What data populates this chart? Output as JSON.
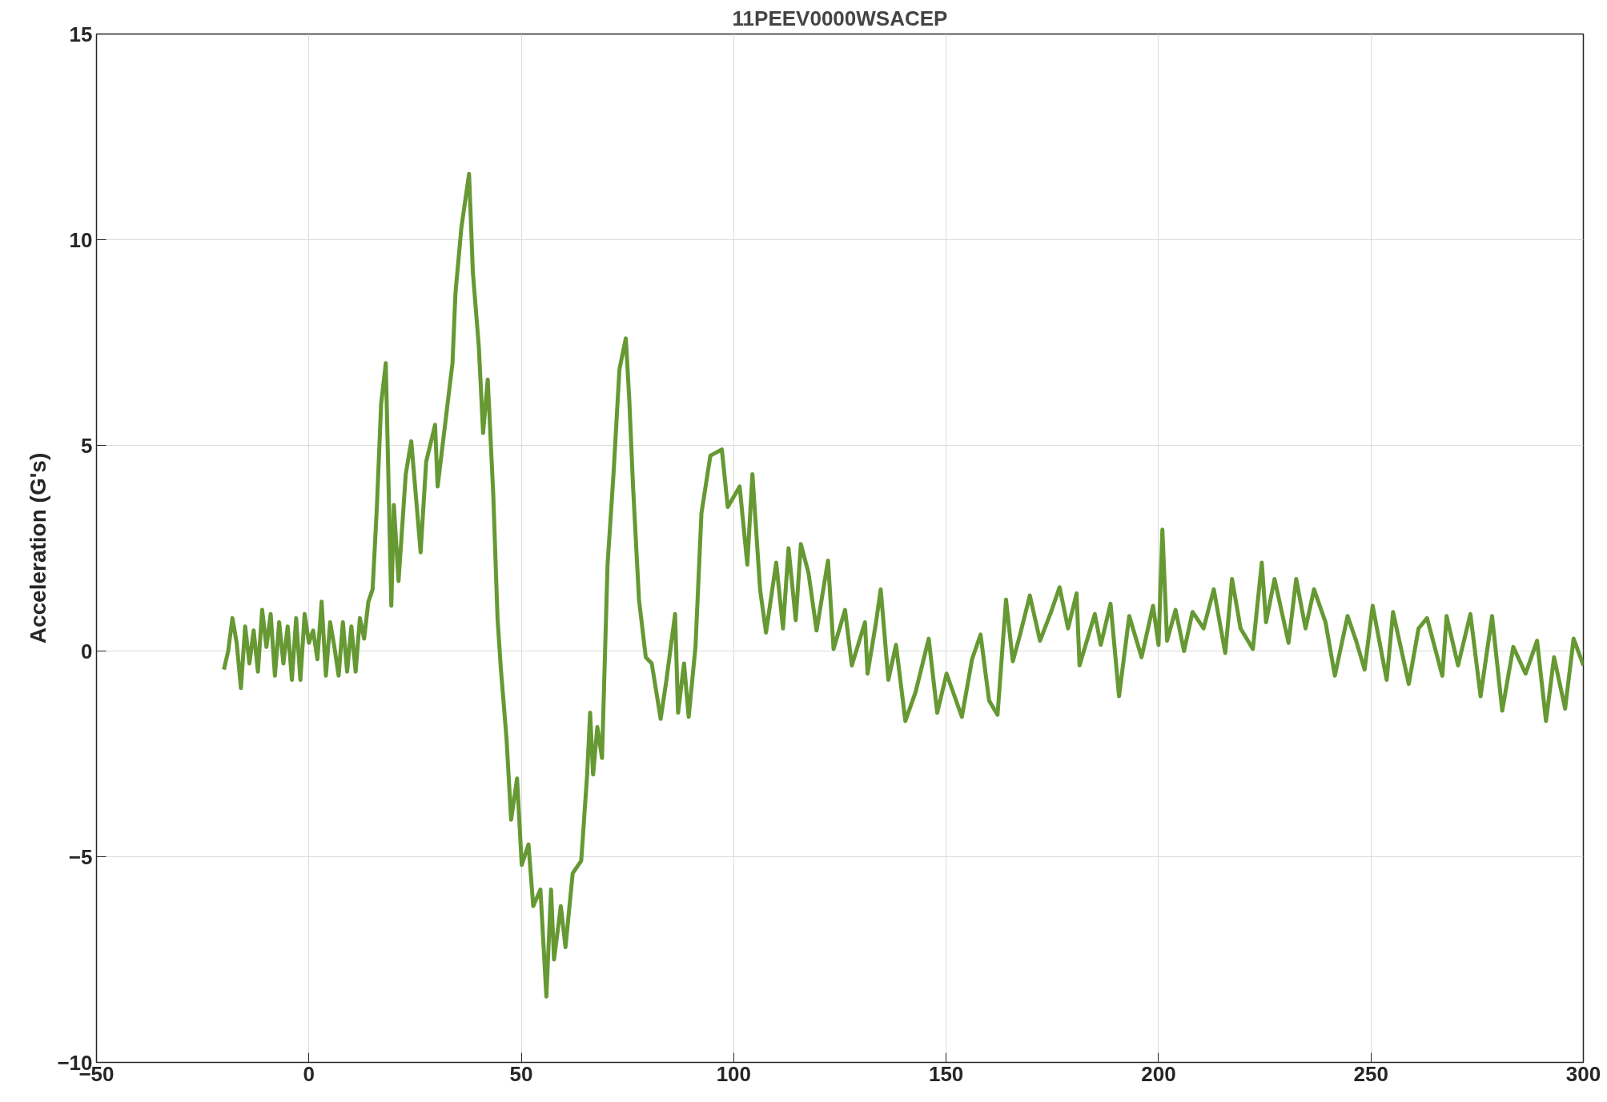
{
  "chart_data": {
    "type": "line",
    "title": "11PEEV0000WSACEP",
    "ylabel": "Acceleration (G's)",
    "x": [
      -20,
      -19,
      -18,
      -17,
      -16,
      -15,
      -14,
      -13,
      -12,
      -11,
      -10,
      -9,
      -8,
      -7,
      -6,
      -5,
      -4,
      -3,
      -2,
      -1,
      0,
      1,
      2,
      3,
      4,
      5,
      6,
      7,
      8,
      9,
      10,
      11,
      12,
      13,
      14,
      15,
      16,
      17,
      18.1,
      19.4,
      20.0,
      21.1,
      22.8,
      24.1,
      26.3,
      27.6,
      29.7,
      30.3,
      32.4,
      33.8,
      34.5,
      35.9,
      37.7,
      38.6,
      40.0,
      41.0,
      42.1,
      43.4,
      44.4,
      45.2,
      46.5,
      47.6,
      49.0,
      50.1,
      51.7,
      52.8,
      54.5,
      55.9,
      57.0,
      57.7,
      59.3,
      60.4,
      62.1,
      64.1,
      65.5,
      66.2,
      66.9,
      67.9,
      69.0,
      70.3,
      71.7,
      73.1,
      74.6,
      75.4,
      76.3,
      77.7,
      79.3,
      80.7,
      82.8,
      84.1,
      86.2,
      86.9,
      88.3,
      89.4,
      91.0,
      92.4,
      94.5,
      97.2,
      98.6,
      101.4,
      103.2,
      104.4,
      106.2,
      107.6,
      110.0,
      111.6,
      112.9,
      114.6,
      115.8,
      117.6,
      119.5,
      122.2,
      123.5,
      126.2,
      127.8,
      130.9,
      131.5,
      133.5,
      134.6,
      136.4,
      138.2,
      140.4,
      142.8,
      145.9,
      147.9,
      150.1,
      153.7,
      156.1,
      158.1,
      160.1,
      162.1,
      164.1,
      165.7,
      167.4,
      169.7,
      172.1,
      174.7,
      176.7,
      178.7,
      180.7,
      181.4,
      185.0,
      186.4,
      188.7,
      190.7,
      193.1,
      196.0,
      198.7,
      200.0,
      200.9,
      202.0,
      204.0,
      206.0,
      208.0,
      210.6,
      213.0,
      215.7,
      217.3,
      219.3,
      222.2,
      224.3,
      225.3,
      227.3,
      230.6,
      232.4,
      234.6,
      236.6,
      239.3,
      241.5,
      244.5,
      246.5,
      248.5,
      250.4,
      253.7,
      255.2,
      258.9,
      261.2,
      263.2,
      266.8,
      267.8,
      270.5,
      273.4,
      275.8,
      278.5,
      280.9,
      283.5,
      286.4,
      289.1,
      291.2,
      293.1,
      295.7,
      297.7,
      300
    ],
    "values": [
      -0.45,
      0,
      0.8,
      0.2,
      -0.9,
      0.6,
      -0.3,
      0.5,
      -0.5,
      1.0,
      0.1,
      0.9,
      -0.6,
      0.7,
      -0.3,
      0.6,
      -0.7,
      0.8,
      -0.7,
      0.9,
      0.2,
      0.5,
      -0.2,
      1.2,
      -0.6,
      0.7,
      0.1,
      -0.6,
      0.7,
      -0.5,
      0.6,
      -0.5,
      0.8,
      0.3,
      1.2,
      1.5,
      3.5,
      6.0,
      7.0,
      1.1,
      3.55,
      1.7,
      4.3,
      5.1,
      2.4,
      4.6,
      5.5,
      4.0,
      5.8,
      7.0,
      8.7,
      10.3,
      11.6,
      9.2,
      7.4,
      5.3,
      6.6,
      3.8,
      0.8,
      -0.45,
      -2.1,
      -4.1,
      -3.1,
      -5.2,
      -4.7,
      -6.2,
      -5.8,
      -8.4,
      -5.8,
      -7.5,
      -6.2,
      -7.2,
      -5.4,
      -5.1,
      -3.0,
      -1.5,
      -3.0,
      -1.85,
      -2.6,
      2.1,
      4.3,
      6.85,
      7.6,
      6.15,
      4.0,
      1.25,
      -0.15,
      -0.3,
      -1.65,
      -0.75,
      0.9,
      -1.5,
      -0.3,
      -1.6,
      0.1,
      3.35,
      4.75,
      4.9,
      3.5,
      4.0,
      2.1,
      4.3,
      1.5,
      0.45,
      2.15,
      0.55,
      2.5,
      0.75,
      2.6,
      1.9,
      0.5,
      2.2,
      0.05,
      1.0,
      -0.35,
      0.7,
      -0.55,
      0.7,
      1.5,
      -0.7,
      0.15,
      -1.7,
      -1.0,
      0.3,
      -1.5,
      -0.55,
      -1.6,
      -0.2,
      0.4,
      -1.2,
      -1.55,
      1.25,
      -0.25,
      0.4,
      1.35,
      0.25,
      0.95,
      1.55,
      0.55,
      1.4,
      -0.35,
      0.9,
      0.15,
      1.15,
      -1.1,
      0.85,
      -0.15,
      1.1,
      0.15,
      2.95,
      0.25,
      1.0,
      0.0,
      0.95,
      0.55,
      1.5,
      -0.05,
      1.75,
      0.55,
      0.05,
      2.15,
      0.7,
      1.75,
      0.2,
      1.75,
      0.55,
      1.5,
      0.7,
      -0.6,
      0.85,
      0.25,
      -0.45,
      1.1,
      -0.7,
      0.95,
      -0.8,
      0.55,
      0.8,
      -0.6,
      0.85,
      -0.35,
      0.9,
      -1.1,
      0.85,
      -1.45,
      0.1,
      -0.55,
      0.25,
      -1.7,
      -0.15,
      -1.4,
      0.3,
      -0.35
    ],
    "color": "#669933",
    "line_style": "solid",
    "xlim": [
      -50,
      300
    ],
    "ylim": [
      -10,
      15
    ],
    "xticks": [
      -50,
      0,
      50,
      100,
      150,
      200,
      250,
      300
    ],
    "yticks": [
      -10,
      -5,
      0,
      5,
      10,
      15
    ],
    "grid": true
  }
}
